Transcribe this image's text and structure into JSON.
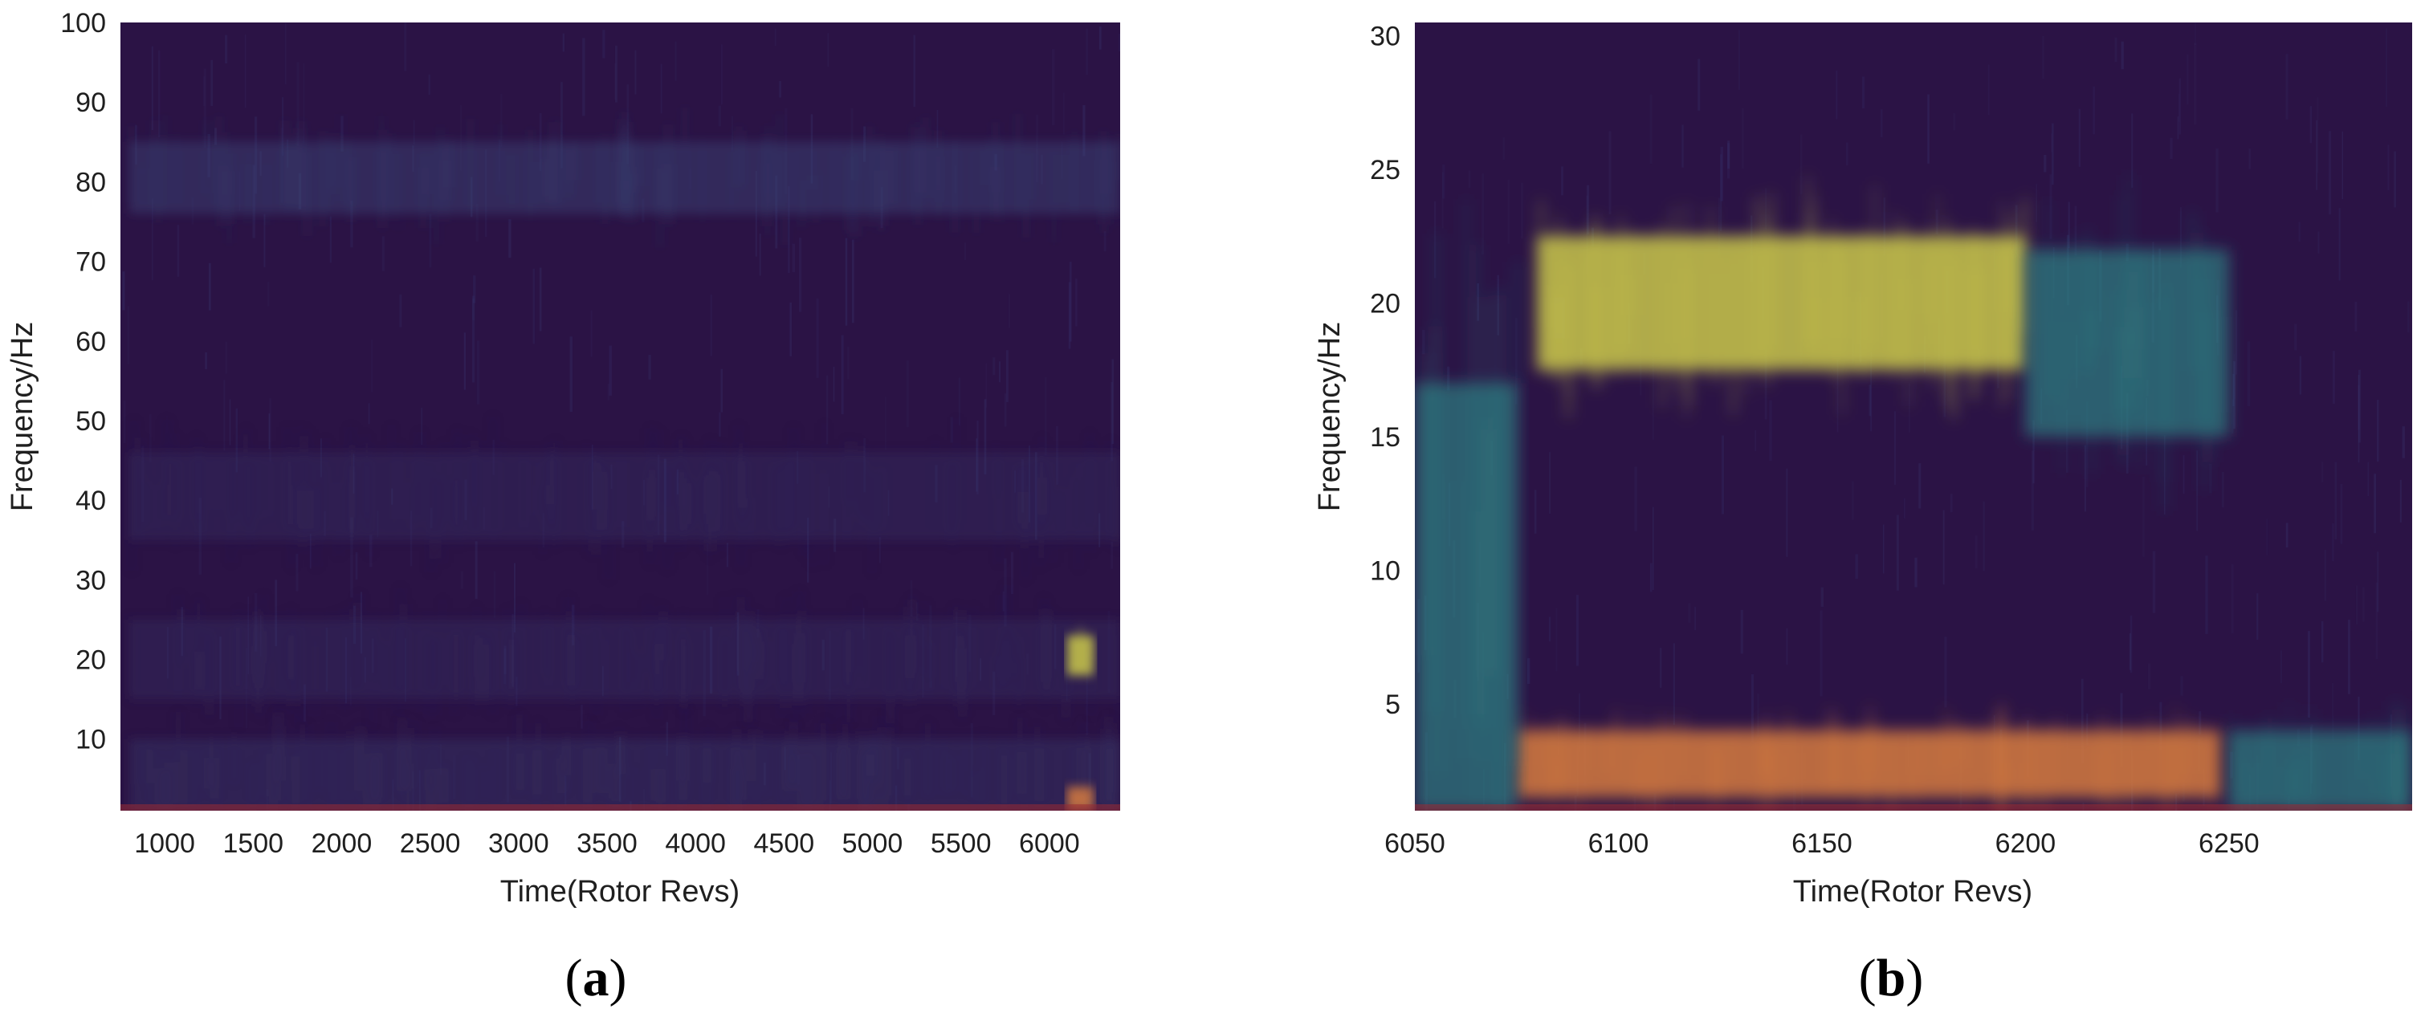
{
  "colors": {
    "background": "#2b1345",
    "low_band": "#3a3a6a",
    "mid_band": "#3b4a7a",
    "teal": "#2f8f8a",
    "yellow": "#c8c54a",
    "orange": "#d47a3e",
    "red": "#9a2b33"
  },
  "chart_data": [
    {
      "type": "heatmap",
      "panel_label": "(a)",
      "title": "",
      "xlabel": "Time(Rotor Revs)",
      "ylabel": "Frequency/Hz",
      "xlim": [
        750,
        6400
      ],
      "ylim": [
        1,
        100
      ],
      "xticks": [
        1000,
        1500,
        2000,
        2500,
        3000,
        3500,
        4000,
        4500,
        5000,
        5500,
        6000
      ],
      "yticks": [
        10,
        20,
        30,
        40,
        50,
        60,
        70,
        80,
        90,
        100
      ],
      "grid": false,
      "features": [
        {
          "x": [
            800,
            6400
          ],
          "y": [
            76,
            85
          ],
          "intensity": "low",
          "color": "mid_band"
        },
        {
          "x": [
            800,
            6400
          ],
          "y": [
            35,
            46
          ],
          "intensity": "very low",
          "color": "low_band"
        },
        {
          "x": [
            800,
            6400
          ],
          "y": [
            15,
            25
          ],
          "intensity": "very low",
          "color": "low_band"
        },
        {
          "x": [
            800,
            6400
          ],
          "y": [
            1,
            10
          ],
          "intensity": "low",
          "color": "low_band"
        },
        {
          "x": [
            6100,
            6250
          ],
          "y": [
            18,
            23
          ],
          "intensity": "high",
          "color": "yellow"
        },
        {
          "x": [
            6100,
            6250
          ],
          "y": [
            1,
            4
          ],
          "intensity": "high",
          "color": "orange"
        }
      ]
    },
    {
      "type": "heatmap",
      "panel_label": "(b)",
      "title": "",
      "xlabel": "Time(Rotor Revs)",
      "ylabel": "Frequency/Hz",
      "xlim": [
        6050,
        6295
      ],
      "ylim": [
        1,
        30.5
      ],
      "xticks": [
        6050,
        6100,
        6150,
        6200,
        6250
      ],
      "yticks": [
        5,
        10,
        15,
        20,
        25,
        30
      ],
      "grid": false,
      "features": [
        {
          "x": [
            6080,
            6200
          ],
          "y": [
            17.5,
            22.5
          ],
          "intensity": "high",
          "color": "yellow"
        },
        {
          "x": [
            6200,
            6250
          ],
          "y": [
            15,
            22
          ],
          "intensity": "medium",
          "color": "teal"
        },
        {
          "x": [
            6075,
            6248
          ],
          "y": [
            1.5,
            4
          ],
          "intensity": "high",
          "color": "orange"
        },
        {
          "x": [
            6050,
            6075
          ],
          "y": [
            1,
            17
          ],
          "intensity": "medium",
          "color": "teal"
        },
        {
          "x": [
            6250,
            6295
          ],
          "y": [
            1,
            4
          ],
          "intensity": "medium",
          "color": "teal"
        }
      ]
    }
  ]
}
